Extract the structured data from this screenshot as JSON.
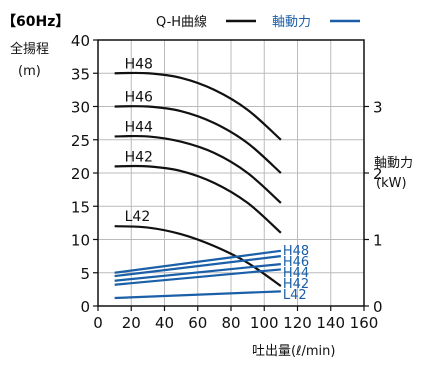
{
  "chart_data": {
    "type": "line",
    "title": "【60Hz】",
    "legend": {
      "qh_label": "Q-H曲線",
      "power_label": "軸動力",
      "placement": "top-center"
    },
    "ylabel_left": [
      "全揚程",
      "(m)"
    ],
    "ylabel_right": [
      "軸動力",
      "(kW)"
    ],
    "xlabel": "吐出量(ℓ/min)",
    "xlim": [
      0,
      160
    ],
    "ylim_left": [
      0,
      40
    ],
    "ylim_right": [
      0,
      4
    ],
    "x_ticks": [
      "0",
      "20",
      "40",
      "60",
      "80",
      "100",
      "120",
      "140",
      "160"
    ],
    "y_ticks_left": [
      "0",
      "5",
      "10",
      "15",
      "20",
      "25",
      "30",
      "35",
      "40"
    ],
    "y_ticks_right": [
      "0",
      "1",
      "2",
      "3"
    ],
    "grid": true,
    "colors": {
      "qh": "#111111",
      "power": "#1a5fa8",
      "grid": "#bbbbbb"
    },
    "qh_series": [
      {
        "name": "H48",
        "x": [
          10,
          30,
          50,
          70,
          90,
          110
        ],
        "y": [
          35,
          35,
          34.3,
          32.5,
          29.5,
          25
        ]
      },
      {
        "name": "H46",
        "x": [
          10,
          30,
          50,
          70,
          90,
          110
        ],
        "y": [
          30,
          30,
          29.3,
          27.5,
          24.5,
          20
        ]
      },
      {
        "name": "H44",
        "x": [
          10,
          30,
          50,
          70,
          90,
          110
        ],
        "y": [
          25.5,
          25.5,
          24.7,
          23,
          20,
          15.5
        ]
      },
      {
        "name": "H42",
        "x": [
          10,
          30,
          50,
          70,
          90,
          110
        ],
        "y": [
          21,
          21,
          20.3,
          18.5,
          15.5,
          11
        ]
      },
      {
        "name": "L42",
        "x": [
          10,
          30,
          50,
          70,
          90,
          110
        ],
        "y": [
          12,
          11.8,
          10.8,
          9,
          6.5,
          3
        ]
      }
    ],
    "power_series": [
      {
        "name": "H48",
        "x": [
          10,
          110
        ],
        "y": [
          0.5,
          0.83
        ]
      },
      {
        "name": "H46",
        "x": [
          10,
          110
        ],
        "y": [
          0.45,
          0.75
        ]
      },
      {
        "name": "H44",
        "x": [
          10,
          110
        ],
        "y": [
          0.38,
          0.63
        ]
      },
      {
        "name": "H42",
        "x": [
          10,
          110
        ],
        "y": [
          0.32,
          0.55
        ]
      },
      {
        "name": "L42",
        "x": [
          10,
          110
        ],
        "y": [
          0.12,
          0.22
        ]
      }
    ]
  }
}
